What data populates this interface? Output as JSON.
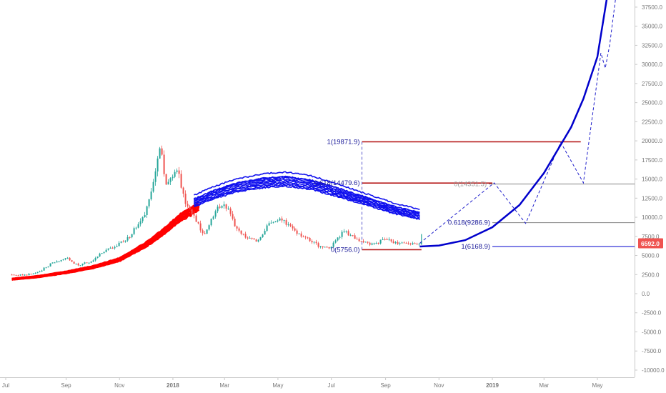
{
  "chart_data": {
    "type": "line",
    "title": "",
    "xlabel": "",
    "ylabel": "",
    "x_ticks": [
      "Jul",
      "Sep",
      "Nov",
      "2018",
      "Mar",
      "May",
      "Jul",
      "Sep",
      "Nov",
      "2019",
      "Mar",
      "May"
    ],
    "y_ticks": [
      -10000,
      -7500,
      -5000,
      -2500,
      0,
      2500,
      5000,
      7500,
      10000,
      12500,
      15000,
      17500,
      20000,
      22500,
      25000,
      27500,
      30000,
      32500,
      35000,
      37500
    ],
    "y_tick_labels": [
      "-10000.0",
      "-7500.0",
      "-5000.0",
      "-2500.0",
      "0.0",
      "2500.0",
      "5000.0",
      "7500.0",
      "10000.0",
      "12500.0",
      "15000.0",
      "17500.0",
      "20000.0",
      "22500.0",
      "25000.0",
      "27500.0",
      "30000.0",
      "32500.0",
      "35000.0",
      "37500.0"
    ],
    "ylim": [
      -10500,
      38800
    ],
    "price_label": "6592.0",
    "last_price": 6592,
    "colors": {
      "up": "#26a69a",
      "down": "#ef5350",
      "fib_line": "#b71c1c",
      "curve": "#0000cc",
      "fib_text": "#1a1a99",
      "axis_text": "#777777",
      "price_badge": "#ef5350"
    },
    "series": [
      {
        "type": "candlestick_close",
        "x": [
          "2017-07-01",
          "2017-07-15",
          "2017-08-01",
          "2017-08-15",
          "2017-09-01",
          "2017-09-15",
          "2017-10-01",
          "2017-10-15",
          "2017-11-01",
          "2017-11-15",
          "2017-12-01",
          "2017-12-10",
          "2017-12-17",
          "2017-12-25",
          "2018-01-06",
          "2018-01-15",
          "2018-02-06",
          "2018-02-20",
          "2018-03-05",
          "2018-03-15",
          "2018-04-06",
          "2018-04-20",
          "2018-05-05",
          "2018-05-20",
          "2018-06-01",
          "2018-06-15",
          "2018-06-29",
          "2018-07-15",
          "2018-07-25",
          "2018-08-05",
          "2018-08-15",
          "2018-09-01",
          "2018-09-15",
          "2018-10-01",
          "2018-10-12"
        ],
        "y": [
          2500,
          2400,
          2800,
          4000,
          4700,
          3700,
          4300,
          5600,
          6500,
          7800,
          10800,
          14500,
          19500,
          14000,
          16500,
          12000,
          7600,
          11000,
          11500,
          8300,
          6800,
          8900,
          9800,
          8200,
          7500,
          6400,
          6000,
          8200,
          7500,
          6800,
          6300,
          7200,
          6500,
          6600,
          6592
        ]
      },
      {
        "name": "",
        "type": "bands",
        "color": "red",
        "x": [
          "2017-07-01",
          "2017-08-01",
          "2017-09-01",
          "2017-10-01",
          "2017-11-01",
          "2017-12-01",
          "2017-12-20",
          "2018-01-10",
          "2018-02-01"
        ],
        "y": [
          1900,
          2250,
          2800,
          3450,
          4450,
          6400,
          8000,
          10000,
          11500
        ]
      },
      {
        "name": "",
        "type": "bands",
        "color": "blue",
        "x": [
          "2018-01-25",
          "2018-02-15",
          "2018-03-15",
          "2018-04-15",
          "2018-05-10",
          "2018-06-10",
          "2018-07-10",
          "2018-08-10",
          "2018-09-10",
          "2018-10-10"
        ],
        "y": [
          11800,
          12800,
          13800,
          14400,
          14600,
          14100,
          13100,
          12000,
          10900,
          10100
        ]
      },
      {
        "name": "",
        "type": "projection_dashed",
        "x": [
          "2018-10-10",
          "2019-01-03",
          "2019-02-08",
          "2019-03-20",
          "2019-04-15",
          "2019-05-05",
          "2019-05-10",
          "2019-05-15",
          "2019-05-22"
        ],
        "y": [
          6600,
          14500,
          9200,
          19800,
          14500,
          31500,
          29500,
          32500,
          38800
        ]
      },
      {
        "name": "",
        "type": "projection_curve",
        "x": [
          "2018-10-10",
          "2018-11-01",
          "2018-12-01",
          "2019-01-01",
          "2019-02-01",
          "2019-03-01",
          "2019-04-01",
          "2019-04-15",
          "2019-05-01",
          "2019-05-12"
        ],
        "y": [
          6169,
          6300,
          7000,
          8700,
          11600,
          15800,
          21800,
          25500,
          31000,
          38800
        ]
      }
    ],
    "fib_levels": [
      {
        "label": "1(19871.9)",
        "value": 19871.9,
        "x_from": "2018-08-05",
        "x_to": "2019-04-12"
      },
      {
        "label": "0.618(14479.6)",
        "value": 14479.6,
        "x_from": "2018-08-05",
        "x_to": "2019-01-01"
      },
      {
        "label": "0(5756.0)",
        "value": 5756.0,
        "x_from": "2018-08-05",
        "x_to": "2018-10-12"
      },
      {
        "label": "0(14351.5)",
        "value": 14351.5,
        "x_from": "2018-12-28",
        "x_to": "2019-06-20"
      },
      {
        "label": "0.618(9286.9)",
        "value": 9286.9,
        "x_from": "2019-01-01",
        "x_to": "2019-06-20"
      },
      {
        "label": "1(6168.9)",
        "value": 6168.9,
        "x_from": "2019-01-01",
        "x_to": "2019-06-20"
      }
    ]
  }
}
